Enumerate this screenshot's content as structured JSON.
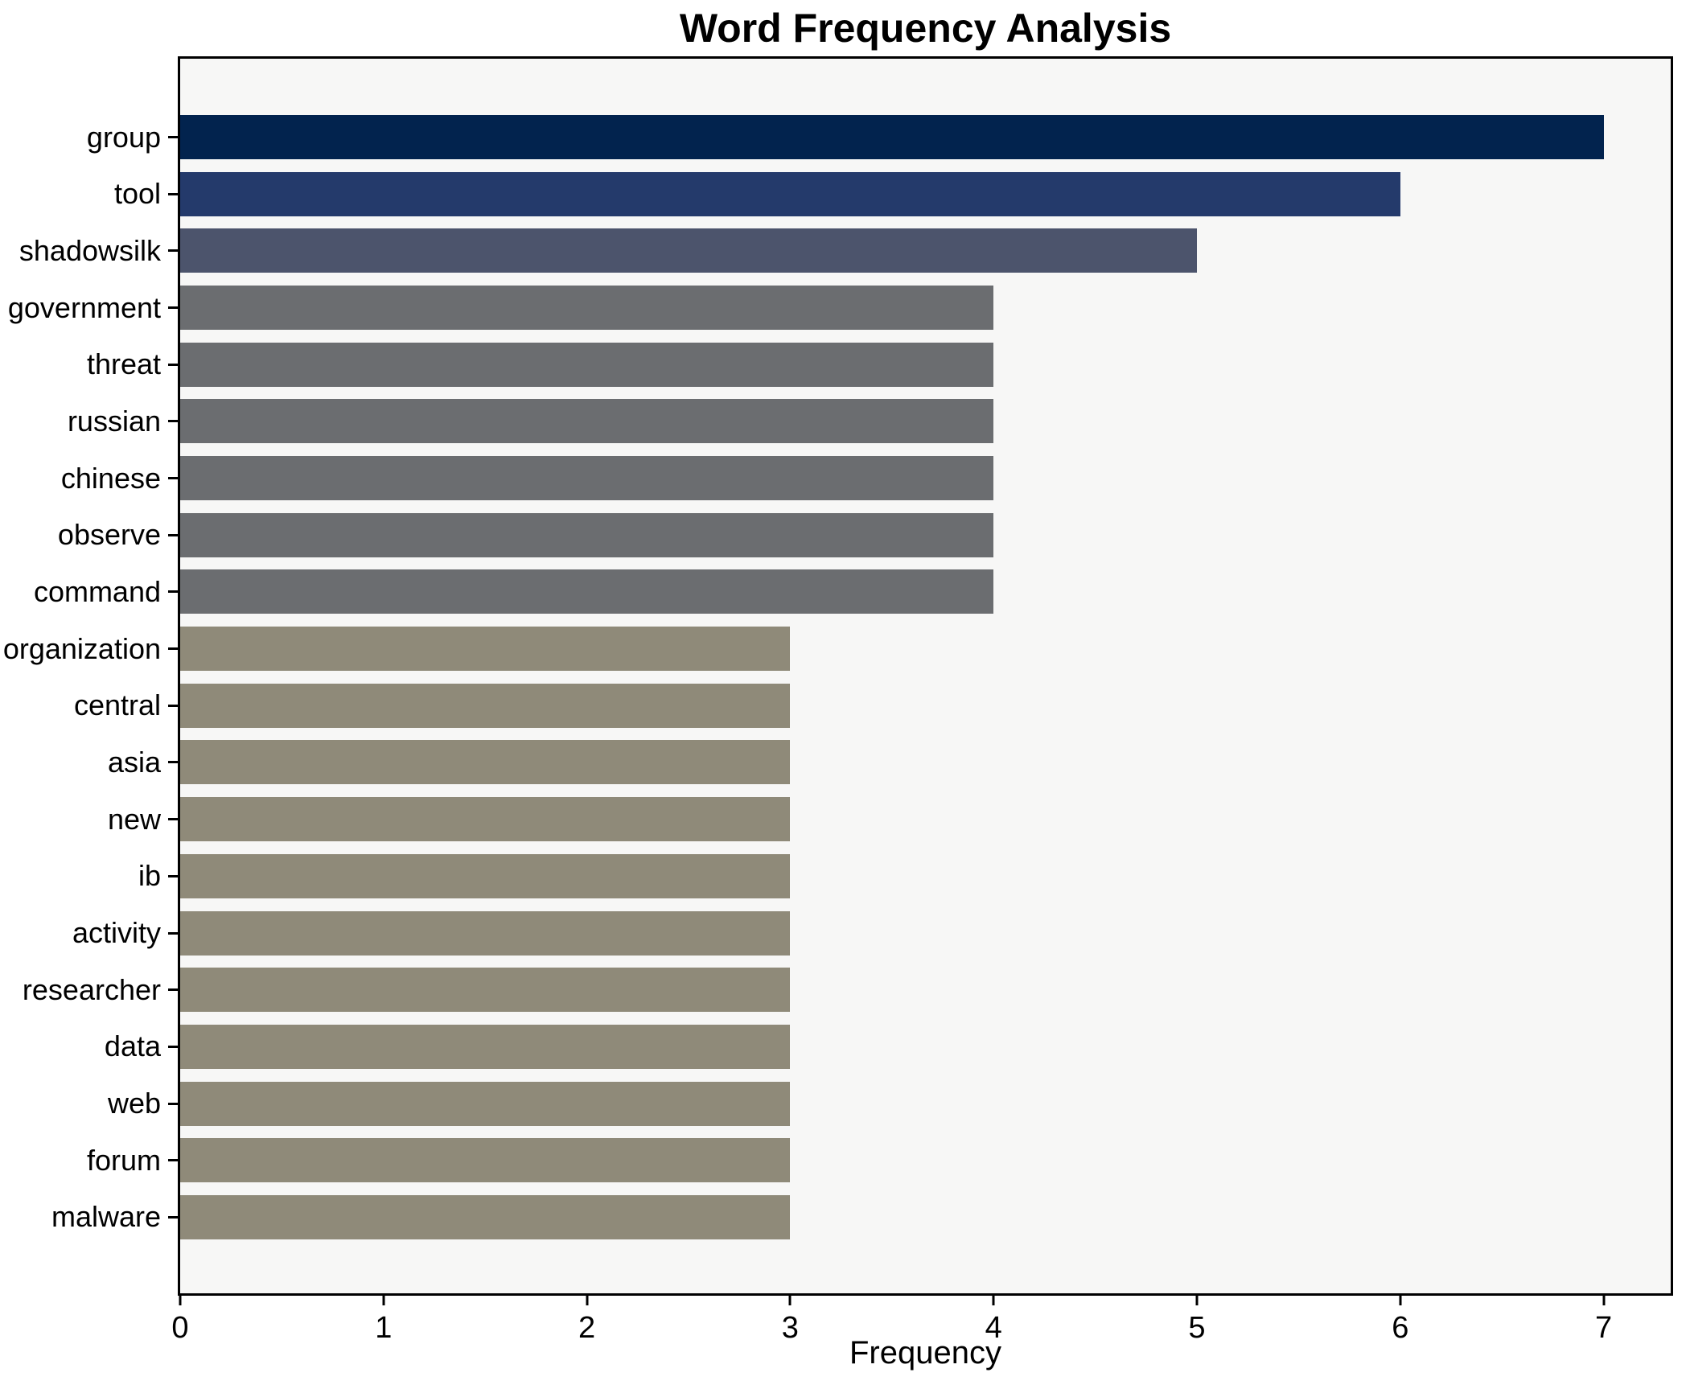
{
  "title": "Word Frequency Analysis",
  "chart_data": {
    "type": "bar",
    "orientation": "horizontal",
    "title": "Word Frequency Analysis",
    "xlabel": "Frequency",
    "ylabel": "",
    "categories": [
      "group",
      "tool",
      "shadowsilk",
      "government",
      "threat",
      "russian",
      "chinese",
      "observe",
      "command",
      "organization",
      "central",
      "asia",
      "new",
      "ib",
      "activity",
      "researcher",
      "data",
      "web",
      "forum",
      "malware"
    ],
    "values": [
      7,
      6,
      5,
      4,
      4,
      4,
      4,
      4,
      4,
      3,
      3,
      3,
      3,
      3,
      3,
      3,
      3,
      3,
      3,
      3
    ],
    "bar_colors": [
      "#02234E",
      "#243A6B",
      "#4C546C",
      "#6B6D70",
      "#6B6D70",
      "#6B6D70",
      "#6B6D70",
      "#6B6D70",
      "#6B6D70",
      "#8F8A79",
      "#8F8A79",
      "#8F8A79",
      "#8F8A79",
      "#8F8A79",
      "#8F8A79",
      "#8F8A79",
      "#8F8A79",
      "#8F8A79",
      "#8F8A79",
      "#8F8A79"
    ],
    "value_color_map": {
      "7": "#02234E",
      "6": "#243A6B",
      "5": "#4C546C",
      "4": "#6B6D70",
      "3": "#8F8A79"
    },
    "xticks": [
      0,
      1,
      2,
      3,
      4,
      5,
      6,
      7
    ],
    "xlim": [
      0,
      7.33
    ],
    "grid": false,
    "legend": null,
    "plot_background": "#F7F7F6",
    "figure_background": "#FFFFFF",
    "axis_color": "#000000"
  }
}
